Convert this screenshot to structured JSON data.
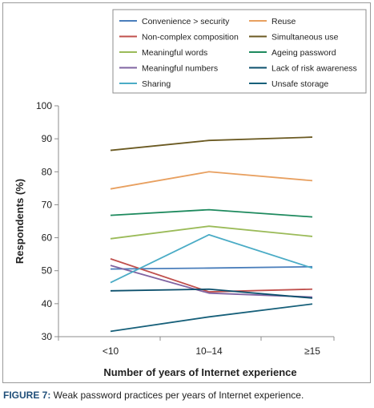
{
  "caption": {
    "label": "FIGURE 7:",
    "text": " Weak password practices per years of Internet experience."
  },
  "chart_data": {
    "type": "line",
    "categories": [
      "<10",
      "10–14",
      "≥15"
    ],
    "ylim": [
      30,
      100
    ],
    "yticks": [
      30,
      40,
      50,
      60,
      70,
      80,
      90,
      100
    ],
    "xlabel": "Number of years of Internet experience",
    "ylabel": "Respondents (%)",
    "legend_position": "top",
    "grid": false,
    "series": [
      {
        "name": "Convenience > security",
        "color": "#4a7ebb",
        "values": [
          50.5,
          50.8,
          51.2
        ]
      },
      {
        "name": "Reuse",
        "color": "#e8a060",
        "values": [
          74.8,
          80.0,
          77.3
        ]
      },
      {
        "name": "Non-complex composition",
        "color": "#c0504d",
        "values": [
          53.6,
          43.6,
          44.4
        ]
      },
      {
        "name": "Simultaneous use",
        "color": "#6b5a22",
        "values": [
          86.5,
          89.5,
          90.5
        ]
      },
      {
        "name": "Meaningful words",
        "color": "#9bbb59",
        "values": [
          59.7,
          63.5,
          60.4
        ]
      },
      {
        "name": "Ageing password",
        "color": "#1e8a5e",
        "values": [
          66.8,
          68.5,
          66.3
        ]
      },
      {
        "name": "Meaningful numbers",
        "color": "#8064a2",
        "values": [
          51.6,
          43.2,
          42.0
        ]
      },
      {
        "name": "Lack of risk awareness",
        "color": "#0b4f6c",
        "values": [
          43.9,
          44.4,
          41.7
        ]
      },
      {
        "name": "Sharing",
        "color": "#4bacc6",
        "values": [
          46.4,
          60.9,
          50.8
        ]
      },
      {
        "name": "Unsafe storage",
        "color": "#17607a",
        "values": [
          31.6,
          36.0,
          39.9
        ]
      }
    ]
  }
}
